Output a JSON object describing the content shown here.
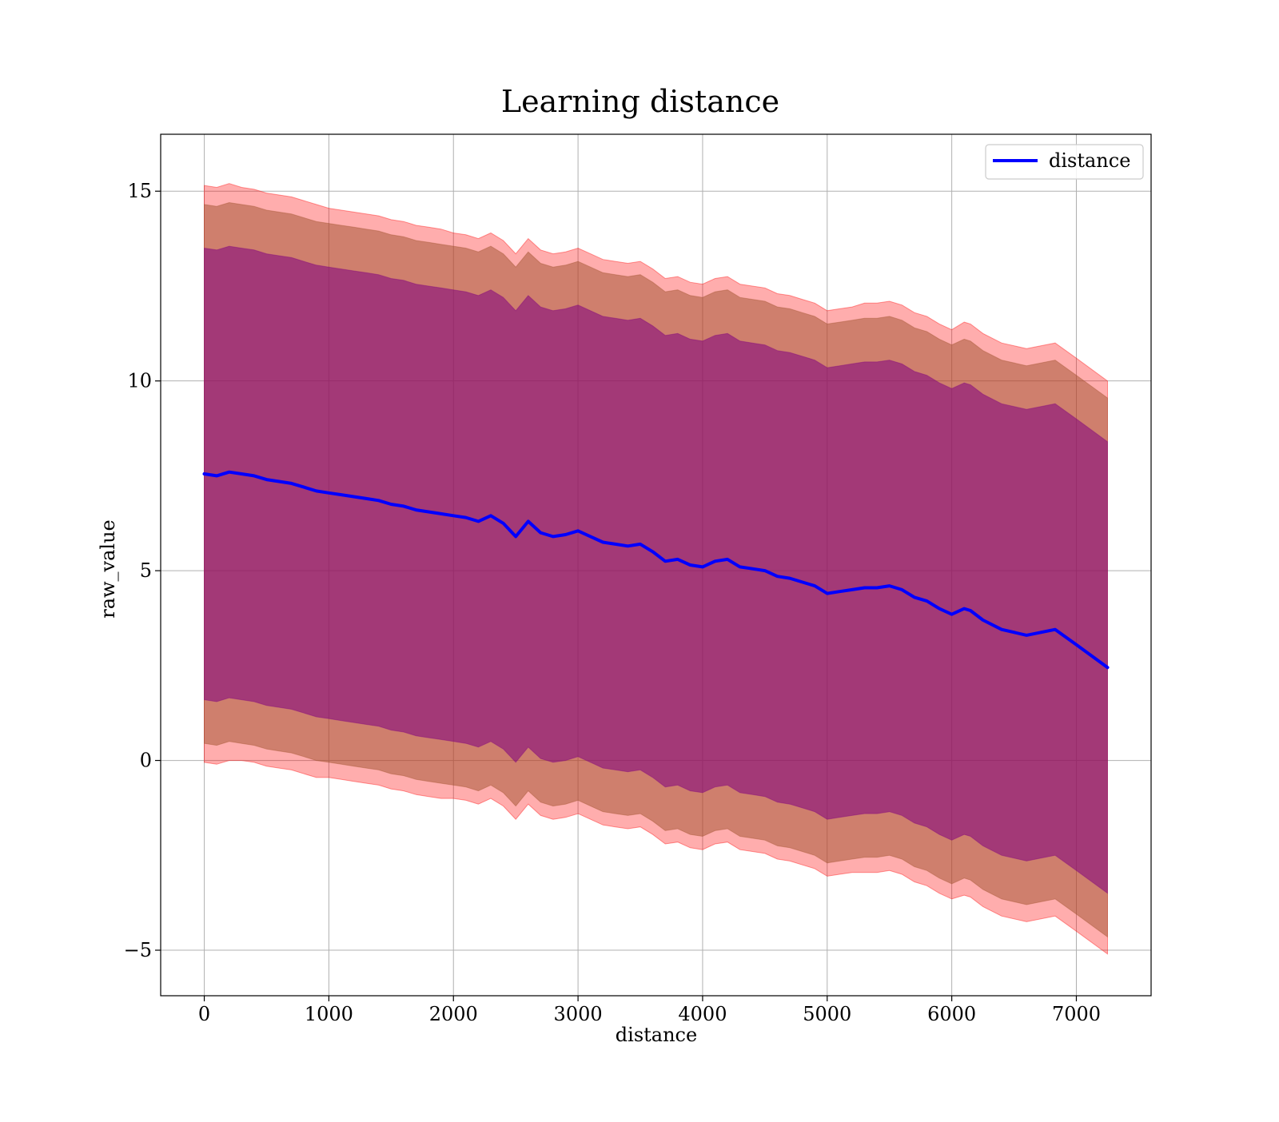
{
  "chart_data": {
    "type": "line",
    "title": "Learning distance",
    "xlabel": "distance",
    "ylabel": "raw_value",
    "xlim": [
      -350,
      7600
    ],
    "ylim": [
      -6.2,
      16.5
    ],
    "xticks": [
      0,
      1000,
      2000,
      3000,
      4000,
      5000,
      6000,
      7000
    ],
    "xtick_labels": [
      "0",
      "1000",
      "2000",
      "3000",
      "4000",
      "5000",
      "6000",
      "7000"
    ],
    "yticks": [
      -5,
      0,
      5,
      10,
      15
    ],
    "ytick_labels": [
      "−5",
      "0",
      "5",
      "10",
      "15"
    ],
    "grid": true,
    "legend_position": "upper right",
    "colors": {
      "mean_line": "#0000ff",
      "band_outer": "#ff0000",
      "band_middle": "#a0522d",
      "band_inner": "#800080",
      "grid": "#b0b0b0"
    },
    "series": [
      {
        "name": "distance",
        "x": [
          0,
          100,
          200,
          300,
          400,
          500,
          600,
          700,
          800,
          900,
          1000,
          1100,
          1200,
          1300,
          1400,
          1500,
          1600,
          1700,
          1800,
          1900,
          2000,
          2100,
          2200,
          2300,
          2400,
          2500,
          2600,
          2700,
          2800,
          2900,
          3000,
          3100,
          3200,
          3300,
          3400,
          3500,
          3600,
          3700,
          3800,
          3900,
          4000,
          4100,
          4200,
          4300,
          4400,
          4500,
          4600,
          4700,
          4800,
          4900,
          5000,
          5100,
          5200,
          5300,
          5400,
          5500,
          5600,
          5700,
          5800,
          5900,
          6000,
          6100,
          6150,
          6250,
          6400,
          6600,
          6830,
          7000,
          7250
        ],
        "y": [
          7.55,
          7.5,
          7.6,
          7.55,
          7.5,
          7.4,
          7.35,
          7.3,
          7.2,
          7.1,
          7.05,
          7.0,
          6.95,
          6.9,
          6.85,
          6.75,
          6.7,
          6.6,
          6.55,
          6.5,
          6.45,
          6.4,
          6.3,
          6.45,
          6.25,
          5.9,
          6.3,
          6.0,
          5.9,
          5.95,
          6.05,
          5.9,
          5.75,
          5.7,
          5.65,
          5.7,
          5.5,
          5.25,
          5.3,
          5.15,
          5.1,
          5.25,
          5.3,
          5.1,
          5.05,
          5.0,
          4.85,
          4.8,
          4.7,
          4.6,
          4.4,
          4.45,
          4.5,
          4.55,
          4.55,
          4.6,
          4.5,
          4.3,
          4.2,
          4.0,
          3.85,
          4.0,
          3.95,
          3.7,
          3.45,
          3.3,
          3.45,
          3.05,
          2.45
        ]
      }
    ],
    "bands": [
      {
        "label": "outer",
        "half_width": [
          7.6,
          7.6,
          7.6,
          7.55,
          7.55,
          7.55,
          7.55,
          7.55,
          7.55,
          7.55,
          7.5,
          7.5,
          7.5,
          7.5,
          7.5,
          7.5,
          7.5,
          7.5,
          7.5,
          7.5,
          7.45,
          7.45,
          7.45,
          7.45,
          7.45,
          7.45,
          7.45,
          7.45,
          7.45,
          7.45,
          7.45,
          7.45,
          7.45,
          7.45,
          7.45,
          7.45,
          7.45,
          7.45,
          7.45,
          7.45,
          7.45,
          7.45,
          7.45,
          7.45,
          7.45,
          7.45,
          7.45,
          7.45,
          7.45,
          7.45,
          7.45,
          7.45,
          7.45,
          7.5,
          7.5,
          7.5,
          7.5,
          7.5,
          7.5,
          7.5,
          7.5,
          7.55,
          7.55,
          7.55,
          7.55,
          7.55,
          7.55,
          7.55,
          7.55
        ]
      },
      {
        "label": "middle",
        "half_width": [
          7.1,
          7.1,
          7.1,
          7.1,
          7.1,
          7.1,
          7.1,
          7.1,
          7.1,
          7.1,
          7.1,
          7.1,
          7.1,
          7.1,
          7.1,
          7.1,
          7.1,
          7.1,
          7.1,
          7.1,
          7.1,
          7.1,
          7.1,
          7.1,
          7.1,
          7.1,
          7.1,
          7.1,
          7.1,
          7.1,
          7.1,
          7.1,
          7.1,
          7.1,
          7.1,
          7.1,
          7.1,
          7.1,
          7.1,
          7.1,
          7.1,
          7.1,
          7.1,
          7.1,
          7.1,
          7.1,
          7.1,
          7.1,
          7.1,
          7.1,
          7.1,
          7.1,
          7.1,
          7.1,
          7.1,
          7.1,
          7.1,
          7.1,
          7.1,
          7.1,
          7.1,
          7.1,
          7.1,
          7.1,
          7.1,
          7.1,
          7.1,
          7.1,
          7.1
        ]
      },
      {
        "label": "inner",
        "half_width": [
          5.95,
          5.95,
          5.95,
          5.95,
          5.95,
          5.95,
          5.95,
          5.95,
          5.95,
          5.95,
          5.95,
          5.95,
          5.95,
          5.95,
          5.95,
          5.95,
          5.95,
          5.95,
          5.95,
          5.95,
          5.95,
          5.95,
          5.95,
          5.95,
          5.95,
          5.95,
          5.95,
          5.95,
          5.95,
          5.95,
          5.95,
          5.95,
          5.95,
          5.95,
          5.95,
          5.95,
          5.95,
          5.95,
          5.95,
          5.95,
          5.95,
          5.95,
          5.95,
          5.95,
          5.95,
          5.95,
          5.95,
          5.95,
          5.95,
          5.95,
          5.95,
          5.95,
          5.95,
          5.95,
          5.95,
          5.95,
          5.95,
          5.95,
          5.95,
          5.95,
          5.95,
          5.95,
          5.95,
          5.95,
          5.95,
          5.95,
          5.95,
          5.95,
          5.95
        ]
      }
    ]
  }
}
